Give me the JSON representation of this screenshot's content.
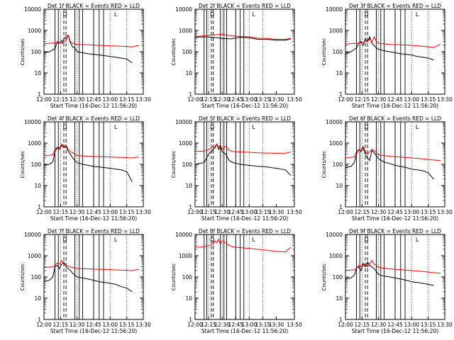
{
  "chart_data": [
    {
      "type": "line",
      "title": "Det  1f  BLACK = Events  RED = LLD",
      "xlabel": "Start Time (16-Dec-12 11:56:20)",
      "ylabel": "Counts/sec",
      "yscale": "log",
      "ylim": [
        1,
        10000
      ],
      "xlim": [
        "12:00",
        "13:30"
      ],
      "x_ticks": [
        "12:00",
        "12:15",
        "12:30",
        "12:45",
        "13:00",
        "13:15",
        "13:30"
      ],
      "y_ticks": [
        "1",
        "10",
        "100",
        "1000",
        "10000"
      ],
      "flags": [
        "D",
        "L"
      ],
      "series": [
        {
          "color": "#000000",
          "x": [
            0,
            5,
            10,
            12,
            14,
            16,
            17,
            18,
            20,
            22,
            24,
            26,
            28,
            30,
            35,
            40,
            45,
            50,
            55,
            60,
            65,
            70,
            75,
            80
          ],
          "values": [
            90,
            100,
            140,
            300,
            260,
            350,
            250,
            400,
            500,
            600,
            250,
            170,
            150,
            100,
            90,
            80,
            75,
            70,
            65,
            60,
            55,
            50,
            45,
            30
          ]
        },
        {
          "color": "#ff0000",
          "x": [
            0,
            10,
            15,
            20,
            22,
            24,
            26,
            28,
            30,
            40,
            50,
            60,
            70,
            80,
            86
          ],
          "values": [
            240,
            260,
            250,
            320,
            600,
            300,
            250,
            230,
            220,
            210,
            200,
            190,
            180,
            170,
            200
          ]
        }
      ]
    },
    {
      "type": "line",
      "title": "Det  2f  BLACK = Events  RED = LLD",
      "xlabel": "Start Time (16-Dec-12 11:56:20)",
      "ylabel": "Counts/sec",
      "yscale": "log",
      "ylim": [
        1,
        10000
      ],
      "xlim": [
        "12:00",
        "13:50"
      ],
      "x_ticks": [
        "12:00",
        "12:15",
        "12:30",
        "12:45",
        "13:00",
        "13:15",
        "13:30",
        "13:50"
      ],
      "y_ticks": [
        "1",
        "10",
        "100",
        "1000",
        "10000"
      ],
      "flags": [
        "D",
        "L"
      ],
      "series": [
        {
          "color": "#000000",
          "x": [
            0,
            10,
            20,
            30,
            40,
            50,
            60,
            70,
            80,
            90,
            100,
            106
          ],
          "values": [
            470,
            500,
            480,
            420,
            400,
            480,
            450,
            380,
            380,
            350,
            350,
            400
          ]
        },
        {
          "color": "#ff0000",
          "x": [
            0,
            10,
            20,
            30,
            40,
            50,
            60,
            70,
            80,
            90,
            100,
            106
          ],
          "values": [
            520,
            560,
            620,
            660,
            560,
            520,
            500,
            430,
            420,
            380,
            380,
            430
          ]
        }
      ]
    },
    {
      "type": "line",
      "title": "Det  3f  BLACK = Events  RED = LLD",
      "xlabel": "Start Time (16-Dec-12 11:56:20)",
      "ylabel": "Counts/sec",
      "yscale": "log",
      "ylim": [
        1,
        10000
      ],
      "xlim": [
        "12:00",
        "13:30"
      ],
      "x_ticks": [
        "12:00",
        "12:15",
        "12:30",
        "12:45",
        "13:00",
        "13:15",
        "13:30"
      ],
      "y_ticks": [
        "1",
        "10",
        "100",
        "1000",
        "10000"
      ],
      "flags": [
        "D",
        "L"
      ],
      "series": [
        {
          "color": "#000000",
          "x": [
            0,
            5,
            10,
            12,
            14,
            16,
            18,
            20,
            22,
            24,
            26,
            28,
            30,
            35,
            40,
            45,
            50,
            55,
            60,
            65,
            70,
            75,
            80
          ],
          "values": [
            80,
            100,
            150,
            250,
            300,
            200,
            400,
            300,
            500,
            250,
            200,
            150,
            130,
            110,
            100,
            90,
            80,
            75,
            70,
            60,
            55,
            50,
            40
          ]
        },
        {
          "color": "#ff0000",
          "x": [
            0,
            10,
            15,
            20,
            22,
            24,
            26,
            28,
            30,
            40,
            50,
            60,
            70,
            80,
            86
          ],
          "values": [
            230,
            250,
            270,
            300,
            400,
            280,
            500,
            300,
            250,
            220,
            210,
            200,
            180,
            160,
            220
          ]
        }
      ]
    },
    {
      "type": "line",
      "title": "Det  4f  BLACK = Events  RED = LLD",
      "xlabel": "Start Time (16-Dec-12 11:56:20)",
      "ylabel": "Counts/sec",
      "yscale": "log",
      "ylim": [
        1,
        10000
      ],
      "xlim": [
        "12:00",
        "13:30"
      ],
      "x_ticks": [
        "12:00",
        "12:15",
        "12:30",
        "12:45",
        "13:00",
        "13:15",
        "13:30"
      ],
      "y_ticks": [
        "1",
        "10",
        "100",
        "1000",
        "10000"
      ],
      "flags": [
        "D",
        "L"
      ],
      "series": [
        {
          "color": "#000000",
          "x": [
            0,
            5,
            8,
            10,
            12,
            14,
            16,
            18,
            20,
            22,
            24,
            26,
            28,
            30,
            35,
            40,
            45,
            50,
            55,
            60,
            65,
            70,
            75,
            80
          ],
          "values": [
            90,
            100,
            130,
            400,
            600,
            500,
            800,
            600,
            700,
            400,
            300,
            200,
            150,
            120,
            100,
            90,
            80,
            75,
            70,
            65,
            60,
            55,
            45,
            15
          ]
        },
        {
          "color": "#ff0000",
          "x": [
            0,
            8,
            10,
            12,
            14,
            16,
            18,
            20,
            22,
            24,
            26,
            28,
            30,
            40,
            50,
            60,
            70,
            80,
            86
          ],
          "values": [
            250,
            280,
            500,
            650,
            600,
            900,
            700,
            800,
            500,
            400,
            350,
            300,
            260,
            240,
            230,
            220,
            210,
            200,
            220
          ]
        }
      ]
    },
    {
      "type": "line",
      "title": "Det  5f  BLACK = Events  RED = LLD",
      "xlabel": "Start Time (16-Dec-12 11:56:20)",
      "ylabel": "Counts/sec",
      "yscale": "log",
      "ylim": [
        1,
        10000
      ],
      "xlim": [
        "12:00",
        "13:50"
      ],
      "x_ticks": [
        "12:00",
        "12:15",
        "12:30",
        "12:45",
        "13:00",
        "13:15",
        "13:30",
        "13:50"
      ],
      "y_ticks": [
        "1",
        "10",
        "100",
        "1000",
        "10000"
      ],
      "flags": [
        "D",
        "L"
      ],
      "series": [
        {
          "color": "#000000",
          "x": [
            0,
            5,
            10,
            15,
            20,
            22,
            24,
            26,
            28,
            30,
            34,
            38,
            42,
            46,
            50,
            60,
            70,
            80,
            90,
            100,
            106
          ],
          "values": [
            100,
            110,
            120,
            300,
            500,
            600,
            900,
            500,
            700,
            400,
            300,
            150,
            120,
            110,
            100,
            90,
            80,
            75,
            65,
            55,
            30
          ]
        },
        {
          "color": "#ff0000",
          "x": [
            0,
            10,
            20,
            22,
            24,
            26,
            28,
            30,
            34,
            38,
            42,
            50,
            60,
            70,
            80,
            90,
            100,
            106
          ],
          "values": [
            400,
            420,
            600,
            700,
            900,
            650,
            800,
            500,
            700,
            450,
            400,
            380,
            370,
            350,
            340,
            330,
            330,
            380
          ]
        }
      ]
    },
    {
      "type": "line",
      "title": "Det  6f  BLACK = Events  RED = LLD",
      "xlabel": "Start Time (16-Dec-12 11:56:20)",
      "ylabel": "Counts/sec",
      "yscale": "log",
      "ylim": [
        1,
        10000
      ],
      "xlim": [
        "12:00",
        "13:30"
      ],
      "x_ticks": [
        "12:00",
        "12:15",
        "12:30",
        "12:45",
        "13:00",
        "13:15",
        "13:30"
      ],
      "y_ticks": [
        "1",
        "10",
        "100",
        "1000",
        "10000"
      ],
      "flags": [
        "D",
        "L"
      ],
      "series": [
        {
          "color": "#000000",
          "x": [
            0,
            5,
            8,
            10,
            12,
            14,
            16,
            18,
            20,
            22,
            24,
            26,
            28,
            30,
            35,
            40,
            45,
            50,
            55,
            60,
            65,
            70,
            75,
            80
          ],
          "values": [
            70,
            80,
            120,
            300,
            500,
            400,
            600,
            300,
            200,
            150,
            450,
            350,
            250,
            180,
            130,
            110,
            90,
            80,
            70,
            60,
            55,
            50,
            40,
            20
          ]
        },
        {
          "color": "#ff0000",
          "x": [
            0,
            8,
            10,
            12,
            14,
            16,
            18,
            20,
            24,
            26,
            28,
            30,
            40,
            50,
            60,
            70,
            80,
            86
          ],
          "values": [
            200,
            220,
            400,
            500,
            450,
            700,
            400,
            300,
            500,
            450,
            350,
            280,
            240,
            220,
            200,
            180,
            160,
            150
          ]
        }
      ]
    },
    {
      "type": "line",
      "title": "Det  7f  BLACK = Events  RED = LLD",
      "xlabel": "Start Time (16-Dec-12 11:56:20)",
      "ylabel": "Counts/sec",
      "yscale": "log",
      "ylim": [
        1,
        10000
      ],
      "xlim": [
        "12:00",
        "13:30"
      ],
      "x_ticks": [
        "12:00",
        "12:15",
        "12:30",
        "12:45",
        "13:00",
        "13:15",
        "13:30"
      ],
      "y_ticks": [
        "1",
        "10",
        "100",
        "1000",
        "10000"
      ],
      "flags": [
        "D",
        "L"
      ],
      "series": [
        {
          "color": "#000000",
          "x": [
            0,
            5,
            8,
            10,
            12,
            14,
            16,
            18,
            20,
            22,
            24,
            26,
            28,
            30,
            35,
            40,
            45,
            50,
            55,
            60,
            65,
            70,
            75,
            80
          ],
          "values": [
            60,
            70,
            100,
            300,
            350,
            250,
            400,
            500,
            300,
            250,
            200,
            150,
            120,
            100,
            90,
            80,
            70,
            60,
            55,
            50,
            45,
            35,
            30,
            20
          ]
        },
        {
          "color": "#ff0000",
          "x": [
            0,
            8,
            10,
            12,
            14,
            16,
            18,
            20,
            24,
            26,
            28,
            30,
            40,
            50,
            60,
            70,
            80,
            86
          ],
          "values": [
            280,
            300,
            350,
            450,
            400,
            600,
            400,
            350,
            300,
            280,
            260,
            250,
            240,
            230,
            220,
            210,
            200,
            230
          ]
        }
      ]
    },
    {
      "type": "line",
      "title": "Det  8f  BLACK = Events  RED = LLD",
      "xlabel": "Start Time (16-Dec-12 11:56:20)",
      "ylabel": "Counts/sec",
      "yscale": "log",
      "ylim": [
        1,
        10000
      ],
      "xlim": [
        "12:00",
        "13:50"
      ],
      "x_ticks": [
        "12:00",
        "12:15",
        "12:30",
        "12:45",
        "13:00",
        "13:15",
        "13:30",
        "13:50"
      ],
      "y_ticks": [
        "1",
        "10",
        "100",
        "1000",
        "10000"
      ],
      "flags": [
        "D",
        "L"
      ],
      "series": [
        {
          "color": "#ff0000",
          "x": [
            0,
            10,
            15,
            20,
            22,
            24,
            26,
            28,
            30,
            34,
            38,
            42,
            50,
            60,
            70,
            80,
            90,
            100,
            106
          ],
          "values": [
            2500,
            2600,
            3000,
            3500,
            5000,
            4000,
            6000,
            3500,
            5000,
            4000,
            3000,
            2600,
            2400,
            2200,
            2000,
            1800,
            1600,
            1500,
            2500
          ]
        }
      ]
    },
    {
      "type": "line",
      "title": "Det  9f  BLACK = Events  RED = LLD",
      "xlabel": "Start Time (16-Dec-12 11:56:20)",
      "ylabel": "Counts/sec",
      "yscale": "log",
      "ylim": [
        1,
        10000
      ],
      "xlim": [
        "12:00",
        "13:30"
      ],
      "x_ticks": [
        "12:00",
        "12:15",
        "12:30",
        "12:45",
        "13:00",
        "13:15",
        "13:30"
      ],
      "y_ticks": [
        "1",
        "10",
        "100",
        "1000",
        "10000"
      ],
      "flags": [
        "D",
        "L"
      ],
      "series": [
        {
          "color": "#000000",
          "x": [
            0,
            5,
            8,
            10,
            12,
            14,
            16,
            18,
            20,
            22,
            24,
            26,
            28,
            30,
            35,
            40,
            45,
            50,
            55,
            60,
            65,
            70,
            75,
            80
          ],
          "values": [
            80,
            90,
            120,
            250,
            300,
            200,
            400,
            300,
            500,
            350,
            300,
            250,
            180,
            130,
            110,
            100,
            90,
            80,
            70,
            60,
            55,
            50,
            45,
            40
          ]
        },
        {
          "color": "#ff0000",
          "x": [
            0,
            8,
            10,
            12,
            14,
            16,
            18,
            20,
            24,
            26,
            28,
            30,
            40,
            50,
            60,
            70,
            80,
            86
          ],
          "values": [
            200,
            220,
            250,
            350,
            300,
            450,
            350,
            300,
            600,
            400,
            350,
            280,
            240,
            220,
            200,
            180,
            160,
            150
          ]
        }
      ]
    }
  ]
}
